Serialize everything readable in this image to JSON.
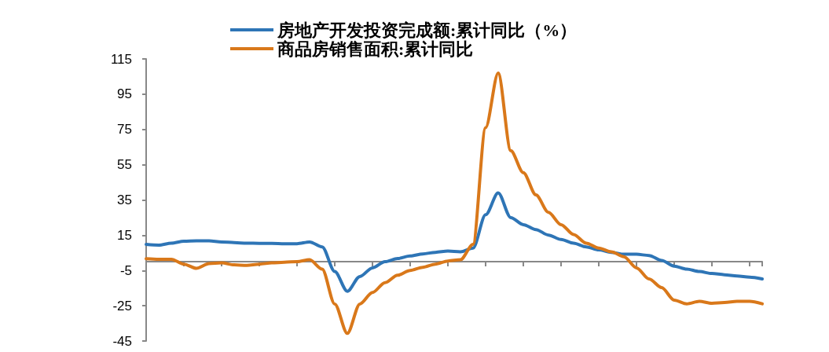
{
  "chart_data": {
    "type": "line",
    "categories": [
      null,
      null,
      null,
      null,
      null,
      null,
      null,
      null,
      null,
      null,
      null,
      null,
      null,
      null,
      null,
      null,
      null,
      null,
      null,
      null,
      null,
      null,
      null,
      null,
      null,
      null,
      null,
      null,
      null,
      null,
      null,
      null,
      null,
      null,
      null,
      null,
      null,
      null,
      null,
      null,
      null,
      null,
      null,
      null,
      null,
      null,
      null,
      null,
      null,
      null
    ],
    "series": [
      {
        "name": "房地产开发投资完成额:累计同比（%）",
        "color": "#2e75b6",
        "values": [
          9.8,
          9.4,
          10.5,
          11.6,
          11.8,
          11.8,
          11.2,
          10.8,
          10.5,
          10.4,
          10.4,
          10.2,
          10.2,
          11.2,
          8.4,
          -5.6,
          -16.8,
          -8.4,
          -3.5,
          0,
          1.8,
          3.2,
          4.4,
          5.3,
          6,
          5.6,
          7.7,
          26.6,
          39,
          25,
          21,
          18.2,
          15.1,
          12.6,
          10.5,
          8.4,
          6.7,
          5.3,
          4.2,
          4.2,
          3.5,
          0.7,
          -2.5,
          -4.2,
          -5.6,
          -6.7,
          -7.4,
          -8.1,
          -8.8,
          -9.8
        ]
      },
      {
        "name": "商品房销售面积:累计同比",
        "color": "#d9781a",
        "values": [
          1.7,
          1.4,
          1.4,
          -1.4,
          -3.8,
          -1.1,
          -0.7,
          -1.8,
          -2.1,
          -1.4,
          -0.7,
          -0.3,
          0,
          1.1,
          -4.2,
          -24,
          -40.7,
          -24,
          -17.5,
          -11.9,
          -7.7,
          -5,
          -3.2,
          -1.4,
          0.4,
          1.1,
          9.8,
          76,
          107,
          63,
          50.5,
          37.9,
          28,
          21,
          15.4,
          10.5,
          7.7,
          5.6,
          2.8,
          -3.5,
          -9.8,
          -14.7,
          -21.8,
          -23.9,
          -22.5,
          -23.6,
          -23.2,
          -22.5,
          -22.5,
          -23.9
        ]
      }
    ],
    "ylim": [
      -45,
      115
    ],
    "yticks": [
      -45,
      -25,
      -5,
      15,
      35,
      55,
      75,
      95,
      115
    ],
    "grid": false,
    "legend": "top",
    "marker": "none",
    "line_style": "solid"
  }
}
